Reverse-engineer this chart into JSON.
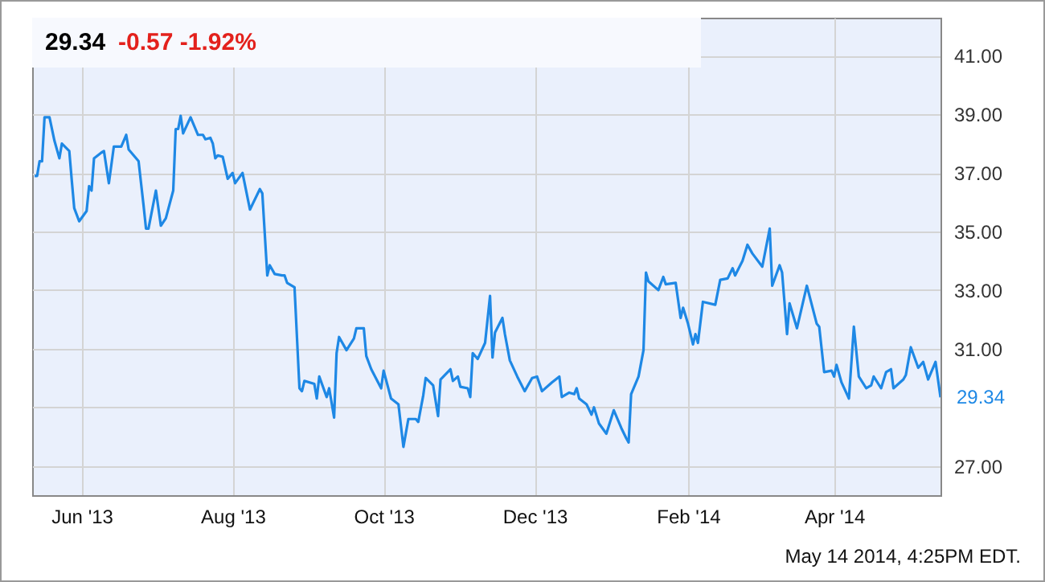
{
  "chart_data": {
    "type": "line",
    "title": "29.34",
    "subtitle": "-0.57  -1.92%",
    "annotations": [
      {
        "text": "29.34",
        "x": "2014-05-14",
        "y": 29.34
      },
      "May 14 2014, 4:25PM EDT."
    ],
    "x": [
      "2013-05-13",
      "2013-05-14",
      "2013-05-15",
      "2013-05-16",
      "2013-05-17",
      "2013-05-19",
      "2013-05-21",
      "2013-05-23",
      "2013-05-24",
      "2013-05-27",
      "2013-05-28",
      "2013-05-29",
      "2013-05-31",
      "2013-06-03",
      "2013-06-04",
      "2013-06-05",
      "2013-06-06",
      "2013-06-09",
      "2013-06-10",
      "2013-06-12",
      "2013-06-14",
      "2013-06-17",
      "2013-06-19",
      "2013-06-20",
      "2013-06-24",
      "2013-06-26",
      "2013-06-27",
      "2013-06-28",
      "2013-07-01",
      "2013-07-03",
      "2013-07-05",
      "2013-07-08",
      "2013-07-09",
      "2013-07-10",
      "2013-07-11",
      "2013-07-12",
      "2013-07-15",
      "2013-07-18",
      "2013-07-20",
      "2013-07-21",
      "2013-07-23",
      "2013-07-24",
      "2013-07-25",
      "2013-07-26",
      "2013-07-28",
      "2013-07-30",
      "2013-08-01",
      "2013-08-02",
      "2013-08-05",
      "2013-08-08",
      "2013-08-12",
      "2013-08-13",
      "2013-08-15",
      "2013-08-16",
      "2013-08-18",
      "2013-08-21",
      "2013-08-22",
      "2013-08-23",
      "2013-08-26",
      "2013-08-28",
      "2013-08-29",
      "2013-08-30",
      "2013-09-03",
      "2013-09-04",
      "2013-09-05",
      "2013-09-08",
      "2013-09-09",
      "2013-09-11",
      "2013-09-12",
      "2013-09-13",
      "2013-09-16",
      "2013-09-19",
      "2013-09-20",
      "2013-09-23",
      "2013-09-24",
      "2013-09-26",
      "2013-09-30",
      "2013-10-01",
      "2013-10-04",
      "2013-10-07",
      "2013-10-09",
      "2013-10-11",
      "2013-10-14",
      "2013-10-15",
      "2013-10-17",
      "2013-10-18",
      "2013-10-21",
      "2013-10-23",
      "2013-10-24",
      "2013-10-28",
      "2013-10-29",
      "2013-10-31",
      "2013-11-01",
      "2013-11-04",
      "2013-11-05",
      "2013-11-06",
      "2013-11-08",
      "2013-11-11",
      "2013-11-13",
      "2013-11-14",
      "2013-11-15",
      "2013-11-18",
      "2013-11-19",
      "2013-11-21",
      "2013-11-24",
      "2013-11-27",
      "2013-11-30",
      "2013-12-02",
      "2013-12-04",
      "2013-12-08",
      "2013-12-11",
      "2013-12-12",
      "2013-12-15",
      "2013-12-17",
      "2013-12-18",
      "2013-12-19",
      "2013-12-22",
      "2013-12-24",
      "2013-12-25",
      "2013-12-27",
      "2013-12-30",
      "2014-01-02",
      "2014-01-05",
      "2014-01-07",
      "2014-01-08",
      "2014-01-09",
      "2014-01-12",
      "2014-01-14",
      "2014-01-15",
      "2014-01-16",
      "2014-01-20",
      "2014-01-22",
      "2014-01-23",
      "2014-01-27",
      "2014-01-29",
      "2014-01-30",
      "2014-02-01",
      "2014-02-03",
      "2014-02-04",
      "2014-02-05",
      "2014-02-07",
      "2014-02-12",
      "2014-02-14",
      "2014-02-17",
      "2014-02-19",
      "2014-02-20",
      "2014-02-23",
      "2014-02-25",
      "2014-02-27",
      "2014-03-03",
      "2014-03-06",
      "2014-03-07",
      "2014-03-10",
      "2014-03-11",
      "2014-03-13",
      "2014-03-14",
      "2014-03-17",
      "2014-03-21",
      "2014-03-25",
      "2014-03-26",
      "2014-03-28",
      "2014-03-31",
      "2014-04-01",
      "2014-04-02",
      "2014-04-04",
      "2014-04-07",
      "2014-04-09",
      "2014-04-11",
      "2014-04-14",
      "2014-04-16",
      "2014-04-17",
      "2014-04-20",
      "2014-04-22",
      "2014-04-24",
      "2014-04-25",
      "2014-04-29",
      "2014-04-30",
      "2014-05-02",
      "2014-05-05",
      "2014-05-07",
      "2014-05-09",
      "2014-05-12",
      "2014-05-14"
    ],
    "series": [
      {
        "color": "#1e88e5",
        "values": [
          36.9,
          36.9,
          37.4,
          37.4,
          38.9,
          38.9,
          38.1,
          37.5,
          38.0,
          37.75,
          36.75,
          35.8,
          35.35,
          35.7,
          36.55,
          36.4,
          37.5,
          37.7,
          37.75,
          36.65,
          37.9,
          37.9,
          38.3,
          37.8,
          37.4,
          35.9,
          35.1,
          35.1,
          36.4,
          35.2,
          35.45,
          36.4,
          38.5,
          38.5,
          38.95,
          38.35,
          38.9,
          38.3,
          38.3,
          38.15,
          38.2,
          38.0,
          37.5,
          37.6,
          37.55,
          36.8,
          37.0,
          36.65,
          37.0,
          35.75,
          36.45,
          36.3,
          33.5,
          33.85,
          33.55,
          33.5,
          33.5,
          33.25,
          33.1,
          29.65,
          29.55,
          29.9,
          29.8,
          29.3,
          30.05,
          29.35,
          29.65,
          28.65,
          30.85,
          31.4,
          30.95,
          31.35,
          31.7,
          31.7,
          30.75,
          30.3,
          29.65,
          30.25,
          29.3,
          29.1,
          27.65,
          28.6,
          28.6,
          28.5,
          29.4,
          30.0,
          29.75,
          28.7,
          29.95,
          30.3,
          29.9,
          30.05,
          29.7,
          29.65,
          29.35,
          30.85,
          30.65,
          31.2,
          32.8,
          30.7,
          31.55,
          32.05,
          31.5,
          30.6,
          30.05,
          29.55,
          30.0,
          30.05,
          29.55,
          29.85,
          30.05,
          29.35,
          29.5,
          29.45,
          29.65,
          29.3,
          29.1,
          28.75,
          29.0,
          28.45,
          28.1,
          28.9,
          28.3,
          27.95,
          27.8,
          29.45,
          30.05,
          30.95,
          33.6,
          33.3,
          33.0,
          33.45,
          33.2,
          33.25,
          32.05,
          32.4,
          31.85,
          31.15,
          31.5,
          31.2,
          32.6,
          32.5,
          33.35,
          33.4,
          33.75,
          33.5,
          34.0,
          34.55,
          34.25,
          33.8,
          35.1,
          33.15,
          33.85,
          33.6,
          31.5,
          32.55,
          31.7,
          33.15,
          31.85,
          31.75,
          30.2,
          30.25,
          30.05,
          30.45,
          29.85,
          29.3,
          31.75,
          30.05,
          29.65,
          29.75,
          30.05,
          29.65,
          30.2,
          30.3,
          29.65,
          29.95,
          30.1,
          31.05,
          30.35,
          30.55,
          29.95,
          30.55,
          29.34
        ]
      }
    ],
    "xlim": [
      "2013-05-12",
      "2014-05-14"
    ],
    "xticks": [
      {
        "value": "2013-06-01",
        "label": "Jun '13"
      },
      {
        "value": "2013-08-01",
        "label": "Aug '13"
      },
      {
        "value": "2013-10-01",
        "label": "Oct '13"
      },
      {
        "value": "2013-12-01",
        "label": "Dec '13"
      },
      {
        "value": "2014-02-01",
        "label": "Feb '14"
      },
      {
        "value": "2014-04-01",
        "label": "Apr '14"
      }
    ],
    "ylim": [
      26,
      42.3
    ],
    "yticks": [
      {
        "value": 27,
        "label": "27.00"
      },
      {
        "value": 29,
        "label": null
      },
      {
        "value": 31,
        "label": "31.00"
      },
      {
        "value": 33,
        "label": "33.00"
      },
      {
        "value": 35,
        "label": "35.00"
      },
      {
        "value": 37,
        "label": "37.00"
      },
      {
        "value": 39,
        "label": "39.00"
      },
      {
        "value": 41,
        "label": "41.00"
      }
    ],
    "grid": true,
    "marker": "none",
    "line_style": "solid"
  }
}
